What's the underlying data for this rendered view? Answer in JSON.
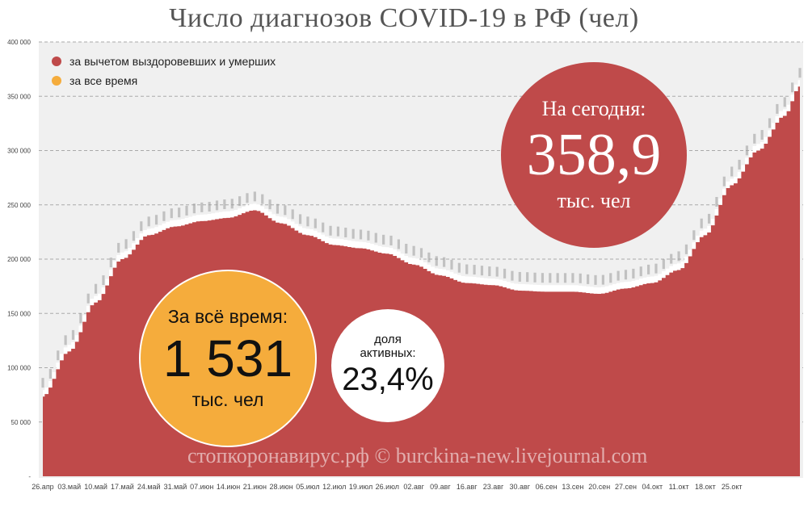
{
  "title": "Число диагнозов COVID-19 в РФ (чел)",
  "watermark": "стопкоронавирус.рф © burckina-new.livejournal.com",
  "colors": {
    "active": "#bf4a4a",
    "total": "#f5ac3c",
    "plot_bg": "#f0f0f0",
    "grid": "#aaaaaa",
    "label": "#444444"
  },
  "bubbles": {
    "today": {
      "label": "На сегодня:",
      "value": "358,9",
      "unit": "тыс. чел"
    },
    "total": {
      "label": "За всё время:",
      "value": "1 531",
      "unit": "тыс. чел"
    },
    "share": {
      "label_line1": "доля",
      "label_line2": "активных:",
      "value": "23,4%"
    }
  },
  "chart_data": {
    "type": "area",
    "title": "Число диагнозов COVID-19 в РФ (чел)",
    "x_start": "26.апр",
    "x_end": "29.окт",
    "ylim": [
      0,
      400000
    ],
    "yticks": [
      "-",
      "50 000",
      "100 000",
      "150 000",
      "200 000",
      "250 000",
      "300 000",
      "350 000",
      "400 000"
    ],
    "xticks": [
      "26.апр",
      "03.май",
      "10.май",
      "17.май",
      "24.май",
      "31.май",
      "07.июн",
      "14.июн",
      "21.июн",
      "28.июн",
      "05.июл",
      "12.июл",
      "19.июл",
      "26.июл",
      "02.авг",
      "09.авг",
      "16.авг",
      "23.авг",
      "30.авг",
      "06.сен",
      "13.сен",
      "20.сен",
      "27.сен",
      "04.окт",
      "11.окт",
      "18.окт",
      "25.окт"
    ],
    "legend_position": "top-left",
    "grid": true,
    "series": [
      {
        "name": "за вычетом выздоровевших и умерших",
        "color": "#bf4a4a",
        "key_points": [
          [
            0,
            73435
          ],
          [
            7,
            115000
          ],
          [
            14,
            160000
          ],
          [
            21,
            200000
          ],
          [
            28,
            222000
          ],
          [
            35,
            230000
          ],
          [
            42,
            235000
          ],
          [
            49,
            238000
          ],
          [
            56,
            245000
          ],
          [
            63,
            233000
          ],
          [
            70,
            222000
          ],
          [
            77,
            213000
          ],
          [
            84,
            210000
          ],
          [
            91,
            205000
          ],
          [
            98,
            195000
          ],
          [
            105,
            185000
          ],
          [
            112,
            178000
          ],
          [
            119,
            176000
          ],
          [
            126,
            171000
          ],
          [
            133,
            170000
          ],
          [
            140,
            170000
          ],
          [
            147,
            168000
          ],
          [
            154,
            173000
          ],
          [
            161,
            178000
          ],
          [
            168,
            190000
          ],
          [
            175,
            222000
          ],
          [
            182,
            268000
          ],
          [
            189,
            300000
          ],
          [
            196,
            332000
          ],
          [
            200,
            358889
          ]
        ]
      },
      {
        "name": "за все время",
        "color": "#f5ac3c",
        "offset": 6000
      }
    ]
  }
}
